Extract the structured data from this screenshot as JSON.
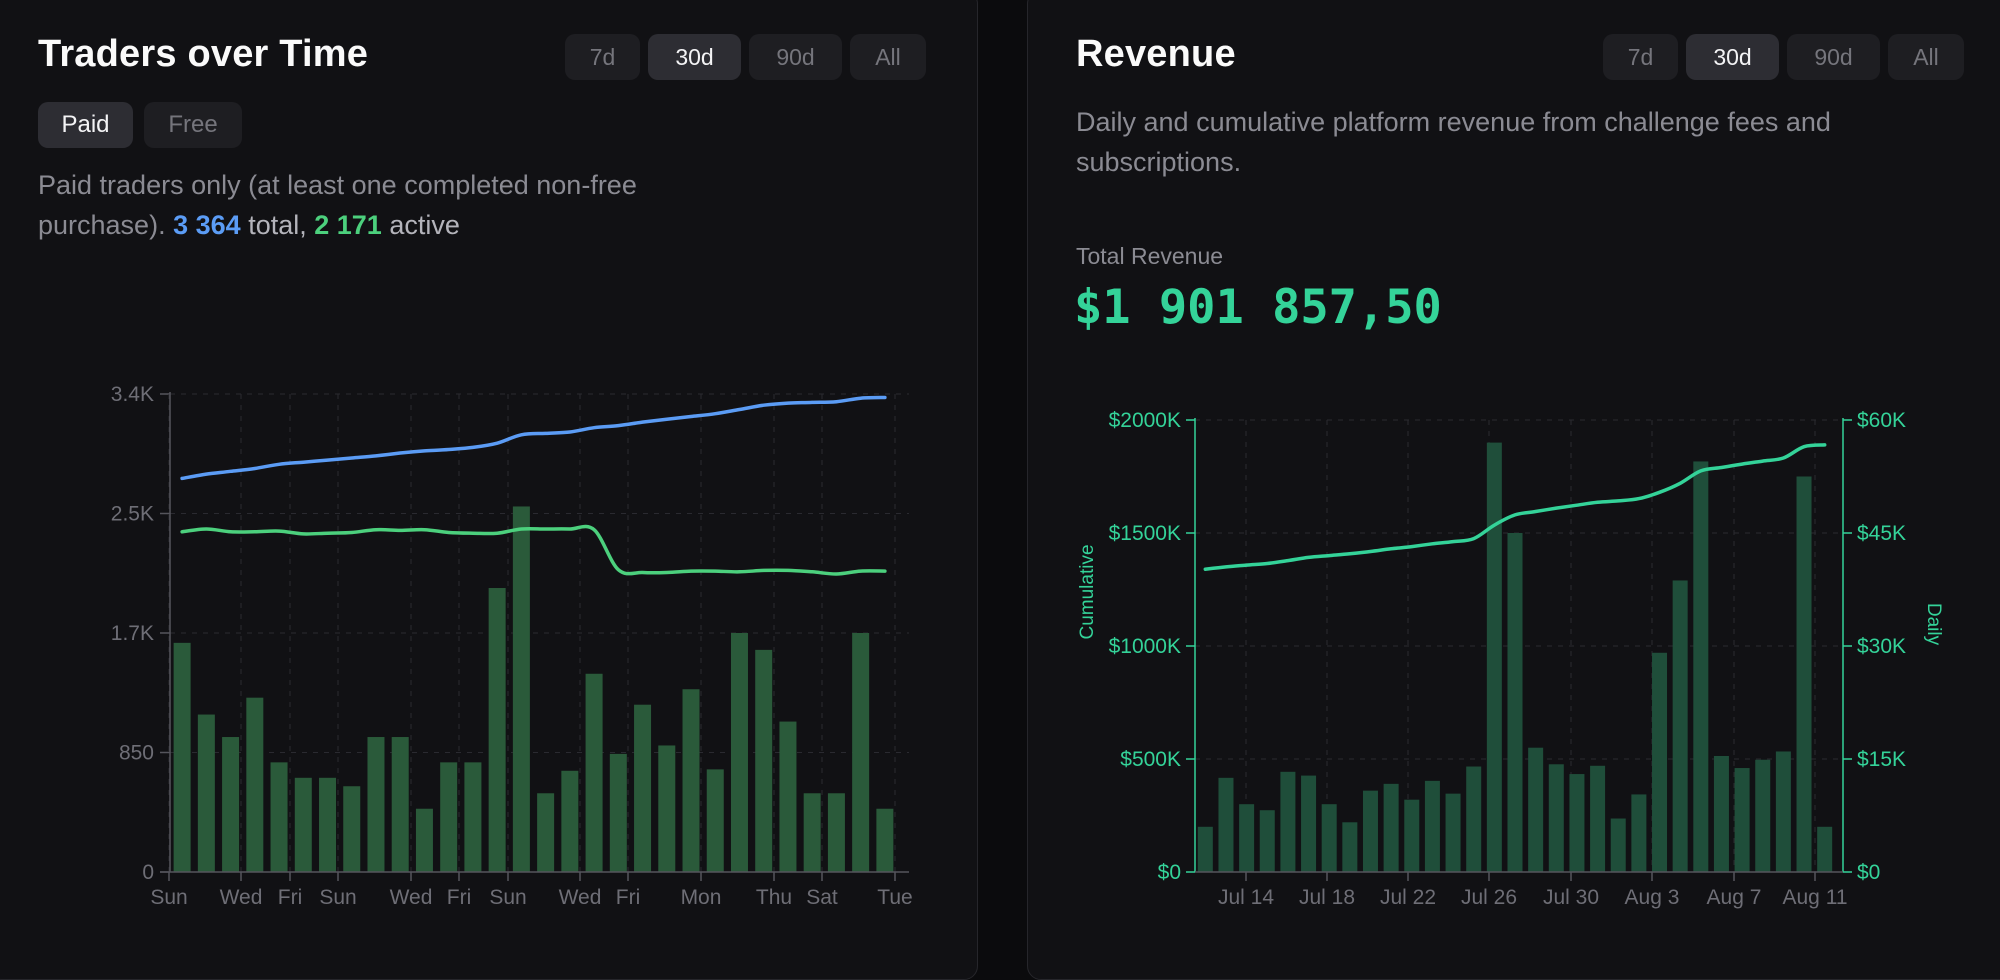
{
  "left": {
    "title": "Traders over Time",
    "ranges": [
      "7d",
      "30d",
      "90d",
      "All"
    ],
    "active_range": "30d",
    "toggles": [
      "Paid",
      "Free"
    ],
    "active_toggle": "Paid",
    "description_line1": "Paid traders only (at least one completed non-free",
    "description_line2_prefix": "purchase).",
    "total_value": "3 364",
    "total_suffix": "total,",
    "active_value": "2 171",
    "active_suffix": "active",
    "colors": {
      "total": "#5b9cf5",
      "active": "#4cd07d",
      "bars": "#2a5a3a"
    }
  },
  "right": {
    "title": "Revenue",
    "ranges": [
      "7d",
      "30d",
      "90d",
      "All"
    ],
    "active_range": "30d",
    "description_line1": "Daily and cumulative platform revenue from challenge fees and",
    "description_line2": "subscriptions.",
    "total_label": "Total Revenue",
    "total_value": "$1 901 857,50",
    "colors": {
      "accent": "#34d399",
      "bars": "#1f4e3a"
    }
  },
  "chart_data": [
    {
      "type": "bar",
      "x_tick_labels": [
        "Sun",
        "Wed",
        "Fri",
        "Sun",
        "Wed",
        "Fri",
        "Sun",
        "Wed",
        "Fri",
        "Mon",
        "Thu",
        "Sat",
        "Tue"
      ],
      "y_tick_labels": [
        "0",
        "850",
        "1.7K",
        "2.5K",
        "3.4K"
      ],
      "ylim": [
        0,
        3400
      ],
      "grid": true,
      "daily_bars": [
        1630,
        1120,
        960,
        1240,
        780,
        670,
        670,
        610,
        960,
        960,
        450,
        780,
        780,
        2020,
        2600,
        560,
        720,
        1410,
        840,
        1190,
        900,
        1300,
        730,
        1700,
        1580,
        1070,
        560,
        560,
        1700,
        450
      ],
      "series": [
        {
          "values": [
            2800,
            2830,
            2850,
            2870,
            2900,
            2915,
            2930,
            2945,
            2960,
            2980,
            2995,
            3005,
            3020,
            3050,
            3110,
            3120,
            3130,
            3160,
            3175,
            3200,
            3220,
            3240,
            3260,
            3290,
            3320,
            3335,
            3340,
            3345,
            3370,
            3375
          ]
        },
        {
          "values": [
            2420,
            2440,
            2420,
            2420,
            2425,
            2405,
            2410,
            2415,
            2435,
            2430,
            2435,
            2415,
            2410,
            2410,
            2440,
            2440,
            2440,
            2435,
            2150,
            2130,
            2130,
            2140,
            2140,
            2135,
            2145,
            2145,
            2135,
            2120,
            2140,
            2140
          ]
        }
      ]
    },
    {
      "type": "bar",
      "x_tick_labels": [
        "Jul 14",
        "Jul 18",
        "Jul 22",
        "Jul 26",
        "Jul 30",
        "Aug 3",
        "Aug 7",
        "Aug 11"
      ],
      "y_left_label": "Cumulative",
      "y_right_label": "Daily",
      "y_left_tick_labels": [
        "$0",
        "$500K",
        "$1000K",
        "$1500K",
        "$2000K"
      ],
      "y_right_tick_labels": [
        "$0",
        "$15K",
        "$30K",
        "$45K",
        "$60K"
      ],
      "ylim_left": [
        0,
        2000000
      ],
      "ylim_right": [
        0,
        60000
      ],
      "grid": true,
      "daily": [
        6000,
        12500,
        9000,
        8200,
        13300,
        12800,
        9000,
        6600,
        10800,
        11700,
        9600,
        12100,
        10400,
        14000,
        57000,
        45000,
        16500,
        14300,
        13000,
        14100,
        7100,
        10300,
        29100,
        38700,
        54500,
        15400,
        13800,
        14900,
        16000,
        52500,
        6000
      ],
      "cumulative": [
        1340000,
        1350000,
        1358000,
        1365000,
        1378000,
        1392000,
        1400000,
        1408000,
        1418000,
        1430000,
        1440000,
        1452000,
        1462000,
        1475000,
        1535000,
        1580000,
        1595000,
        1610000,
        1623000,
        1636000,
        1642000,
        1652000,
        1680000,
        1720000,
        1775000,
        1790000,
        1805000,
        1818000,
        1832000,
        1882000,
        1890000
      ]
    }
  ]
}
